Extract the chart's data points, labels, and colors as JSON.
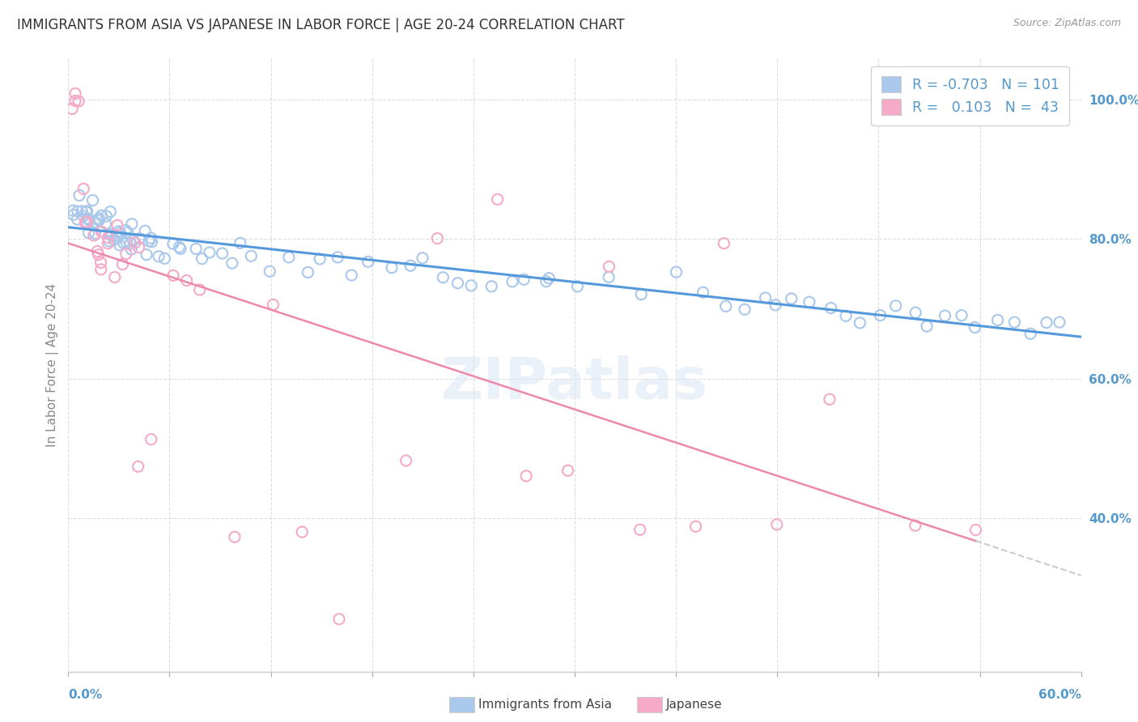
{
  "title": "IMMIGRANTS FROM ASIA VS JAPANESE IN LABOR FORCE | AGE 20-24 CORRELATION CHART",
  "source": "Source: ZipAtlas.com",
  "ylabel": "In Labor Force | Age 20-24",
  "xmin": 0.0,
  "xmax": 0.6,
  "ymin": 0.18,
  "ymax": 1.06,
  "legend_blue_R": "-0.703",
  "legend_blue_N": "101",
  "legend_pink_R": "0.103",
  "legend_pink_N": "43",
  "legend_label_blue": "Immigrants from Asia",
  "legend_label_pink": "Japanese",
  "blue_color": "#aac8ec",
  "pink_color": "#f5aac8",
  "blue_line_color": "#5599dd",
  "pink_line_color": "#ee88aa",
  "axis_label_color": "#5599cc",
  "ylabel_color": "#888888",
  "watermark": "ZIPatlas",
  "blue_scatter_x": [
    0.002,
    0.003,
    0.004,
    0.005,
    0.006,
    0.007,
    0.008,
    0.009,
    0.01,
    0.011,
    0.012,
    0.013,
    0.014,
    0.015,
    0.016,
    0.017,
    0.018,
    0.019,
    0.02,
    0.021,
    0.022,
    0.023,
    0.024,
    0.025,
    0.026,
    0.027,
    0.028,
    0.029,
    0.03,
    0.031,
    0.032,
    0.033,
    0.034,
    0.035,
    0.036,
    0.037,
    0.038,
    0.039,
    0.04,
    0.042,
    0.044,
    0.046,
    0.048,
    0.05,
    0.052,
    0.055,
    0.058,
    0.06,
    0.065,
    0.07,
    0.075,
    0.08,
    0.085,
    0.09,
    0.095,
    0.1,
    0.11,
    0.12,
    0.13,
    0.14,
    0.15,
    0.16,
    0.17,
    0.18,
    0.19,
    0.2,
    0.21,
    0.22,
    0.23,
    0.24,
    0.25,
    0.26,
    0.27,
    0.28,
    0.29,
    0.3,
    0.32,
    0.34,
    0.36,
    0.38,
    0.39,
    0.4,
    0.41,
    0.42,
    0.43,
    0.44,
    0.45,
    0.46,
    0.47,
    0.48,
    0.49,
    0.5,
    0.51,
    0.52,
    0.53,
    0.54,
    0.55,
    0.56,
    0.57,
    0.58,
    0.59
  ],
  "blue_scatter_y": [
    0.84,
    0.845,
    0.838,
    0.842,
    0.835,
    0.84,
    0.838,
    0.836,
    0.834,
    0.832,
    0.83,
    0.828,
    0.826,
    0.825,
    0.823,
    0.825,
    0.822,
    0.82,
    0.818,
    0.82,
    0.818,
    0.816,
    0.814,
    0.815,
    0.813,
    0.811,
    0.812,
    0.81,
    0.808,
    0.81,
    0.808,
    0.806,
    0.807,
    0.805,
    0.803,
    0.804,
    0.802,
    0.8,
    0.8,
    0.798,
    0.796,
    0.797,
    0.795,
    0.793,
    0.792,
    0.79,
    0.788,
    0.787,
    0.785,
    0.783,
    0.782,
    0.78,
    0.778,
    0.776,
    0.774,
    0.772,
    0.77,
    0.768,
    0.766,
    0.764,
    0.762,
    0.76,
    0.758,
    0.756,
    0.754,
    0.752,
    0.75,
    0.748,
    0.746,
    0.744,
    0.742,
    0.74,
    0.738,
    0.736,
    0.734,
    0.732,
    0.728,
    0.724,
    0.72,
    0.716,
    0.714,
    0.712,
    0.71,
    0.708,
    0.706,
    0.704,
    0.702,
    0.7,
    0.698,
    0.696,
    0.694,
    0.692,
    0.69,
    0.688,
    0.686,
    0.684,
    0.682,
    0.68,
    0.678,
    0.676,
    0.674
  ],
  "pink_scatter_x": [
    0.002,
    0.004,
    0.005,
    0.006,
    0.008,
    0.009,
    0.01,
    0.012,
    0.014,
    0.015,
    0.016,
    0.018,
    0.02,
    0.022,
    0.025,
    0.028,
    0.03,
    0.032,
    0.035,
    0.038,
    0.04,
    0.045,
    0.05,
    0.06,
    0.07,
    0.08,
    0.1,
    0.12,
    0.14,
    0.16,
    0.2,
    0.22,
    0.25,
    0.27,
    0.3,
    0.32,
    0.34,
    0.37,
    0.39,
    0.42,
    0.45,
    0.5,
    0.54
  ],
  "pink_scatter_y": [
    1.0,
    1.0,
    0.99,
    1.0,
    0.87,
    0.83,
    0.82,
    0.8,
    0.8,
    0.79,
    0.78,
    0.76,
    0.76,
    0.8,
    0.79,
    0.75,
    0.82,
    0.78,
    0.8,
    0.78,
    0.48,
    0.78,
    0.52,
    0.75,
    0.74,
    0.72,
    0.38,
    0.7,
    0.38,
    0.26,
    0.48,
    0.8,
    0.86,
    0.46,
    0.47,
    0.76,
    0.38,
    0.38,
    0.8,
    0.38,
    0.58,
    0.39,
    0.38
  ]
}
